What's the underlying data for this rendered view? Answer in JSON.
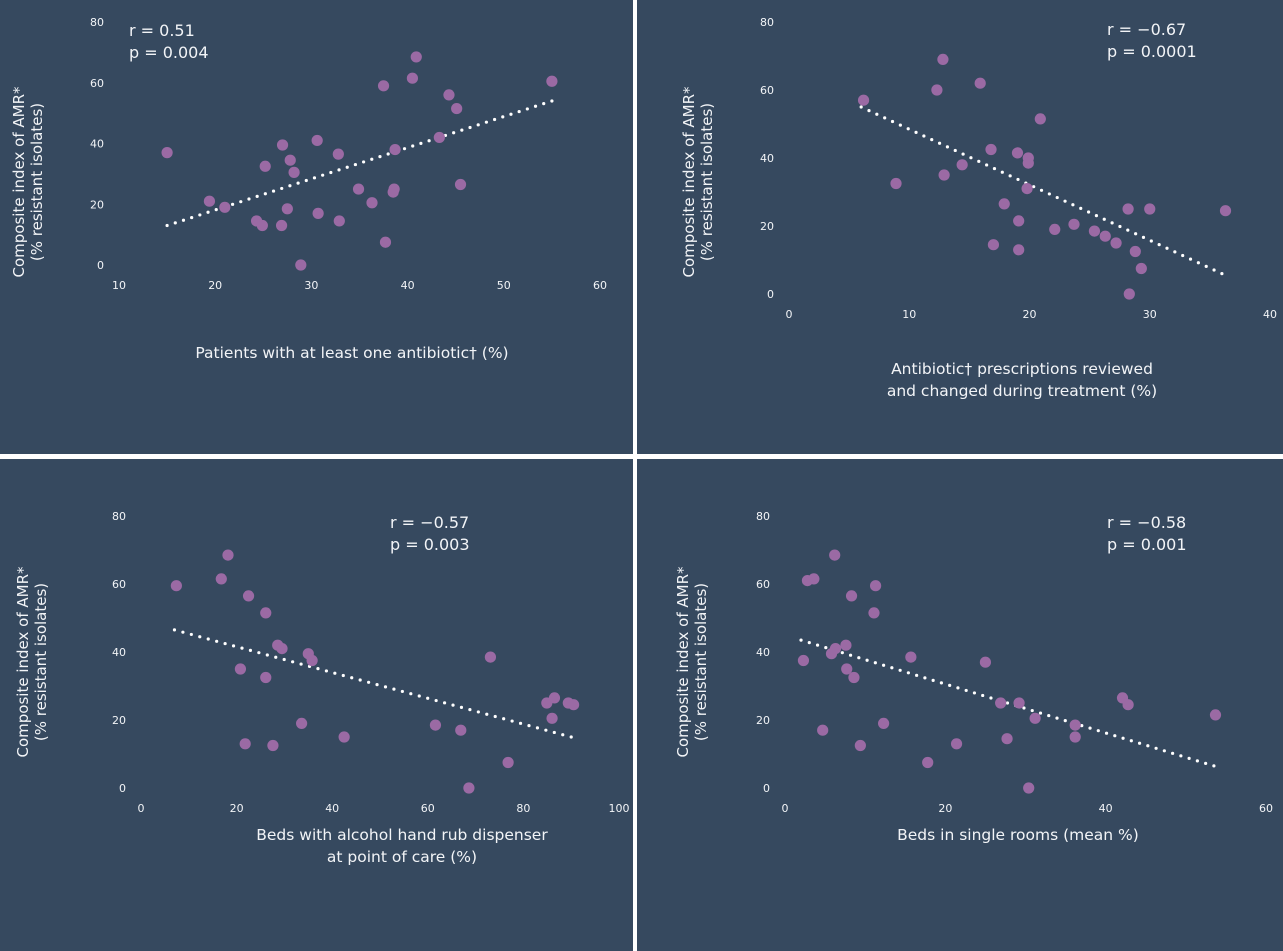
{
  "chart_data": [
    {
      "type": "scatter",
      "xlabel": [
        "Patients with at least one antibiotic† (%)"
      ],
      "ylabel": [
        "Composite index of AMR*",
        "(% resistant isolates)"
      ],
      "xticks": [
        10,
        20,
        30,
        40,
        50,
        60
      ],
      "yticks": [
        0,
        20,
        40,
        60,
        80
      ],
      "xlim": [
        10,
        60
      ],
      "ylim": [
        0,
        80
      ],
      "stats": [
        "r = 0.51",
        "p = 0.004"
      ],
      "trendline": {
        "x": [
          15,
          55
        ],
        "y": [
          13,
          54
        ]
      },
      "points": [
        {
          "x": 15,
          "y": 37
        },
        {
          "x": 19.4,
          "y": 21
        },
        {
          "x": 21,
          "y": 19
        },
        {
          "x": 24.3,
          "y": 14.5
        },
        {
          "x": 24.9,
          "y": 13
        },
        {
          "x": 25.2,
          "y": 32.5
        },
        {
          "x": 26.9,
          "y": 13
        },
        {
          "x": 27,
          "y": 39.5
        },
        {
          "x": 27.5,
          "y": 18.5
        },
        {
          "x": 27.8,
          "y": 34.5
        },
        {
          "x": 28.2,
          "y": 30.5
        },
        {
          "x": 28.9,
          "y": 0
        },
        {
          "x": 30.6,
          "y": 41
        },
        {
          "x": 30.7,
          "y": 17
        },
        {
          "x": 32.8,
          "y": 36.5
        },
        {
          "x": 32.9,
          "y": 14.5
        },
        {
          "x": 34.9,
          "y": 25
        },
        {
          "x": 36.3,
          "y": 20.5
        },
        {
          "x": 37.5,
          "y": 59
        },
        {
          "x": 37.7,
          "y": 7.5
        },
        {
          "x": 38.5,
          "y": 24
        },
        {
          "x": 38.6,
          "y": 25
        },
        {
          "x": 38.7,
          "y": 38
        },
        {
          "x": 40.5,
          "y": 61.5
        },
        {
          "x": 40.9,
          "y": 68.5
        },
        {
          "x": 43.3,
          "y": 42
        },
        {
          "x": 44.3,
          "y": 56
        },
        {
          "x": 45.1,
          "y": 51.5
        },
        {
          "x": 45.5,
          "y": 26.5
        },
        {
          "x": 55,
          "y": 60.5
        }
      ]
    },
    {
      "type": "scatter",
      "xlabel": [
        "Antibiotic† prescriptions reviewed",
        "and changed during treatment (%)"
      ],
      "ylabel": [
        "Composite index of AMR*",
        "(% resistant isolates)"
      ],
      "xticks": [
        0,
        10,
        20,
        30,
        40
      ],
      "yticks": [
        0,
        20,
        40,
        60,
        80
      ],
      "xlim": [
        0,
        40
      ],
      "ylim": [
        0,
        80
      ],
      "stats": [
        "r = −0.67",
        "p = 0.0001"
      ],
      "trendline": {
        "x": [
          6,
          36
        ],
        "y": [
          55,
          6
        ]
      },
      "points": [
        {
          "x": 6.2,
          "y": 57
        },
        {
          "x": 8.9,
          "y": 32.5
        },
        {
          "x": 12.3,
          "y": 60
        },
        {
          "x": 12.8,
          "y": 69
        },
        {
          "x": 12.9,
          "y": 35
        },
        {
          "x": 14.4,
          "y": 38
        },
        {
          "x": 15.9,
          "y": 62
        },
        {
          "x": 16.8,
          "y": 42.5
        },
        {
          "x": 17,
          "y": 14.5
        },
        {
          "x": 17.9,
          "y": 26.5
        },
        {
          "x": 19,
          "y": 41.5
        },
        {
          "x": 19.1,
          "y": 13
        },
        {
          "x": 19.1,
          "y": 21.5
        },
        {
          "x": 19.8,
          "y": 31
        },
        {
          "x": 19.9,
          "y": 40
        },
        {
          "x": 19.9,
          "y": 38.5
        },
        {
          "x": 20.9,
          "y": 51.5
        },
        {
          "x": 22.1,
          "y": 19
        },
        {
          "x": 23.7,
          "y": 20.5
        },
        {
          "x": 25.4,
          "y": 18.5
        },
        {
          "x": 26.3,
          "y": 17
        },
        {
          "x": 27.2,
          "y": 15
        },
        {
          "x": 28.2,
          "y": 25
        },
        {
          "x": 28.3,
          "y": 0
        },
        {
          "x": 28.8,
          "y": 12.5
        },
        {
          "x": 29.3,
          "y": 7.5
        },
        {
          "x": 30,
          "y": 25
        },
        {
          "x": 36.3,
          "y": 24.5
        }
      ]
    },
    {
      "type": "scatter",
      "xlabel": [
        "Beds with alcohol hand rub dispenser",
        "at point of care (%)"
      ],
      "ylabel": [
        "Composite index of AMR*",
        "(% resistant isolates)"
      ],
      "xticks": [
        0,
        20,
        40,
        60,
        80,
        100
      ],
      "yticks": [
        0,
        20,
        40,
        60,
        80
      ],
      "xlim": [
        0,
        100
      ],
      "ylim": [
        0,
        80
      ],
      "stats": [
        "r = −0.57",
        "p = 0.003"
      ],
      "trendline": {
        "x": [
          7,
          90
        ],
        "y": [
          46.5,
          15
        ]
      },
      "points": [
        {
          "x": 7.4,
          "y": 59.5
        },
        {
          "x": 16.8,
          "y": 61.5
        },
        {
          "x": 18.2,
          "y": 68.5
        },
        {
          "x": 20.8,
          "y": 35
        },
        {
          "x": 21.8,
          "y": 13
        },
        {
          "x": 22.5,
          "y": 56.5
        },
        {
          "x": 26.1,
          "y": 51.5
        },
        {
          "x": 26.1,
          "y": 32.5
        },
        {
          "x": 27.6,
          "y": 12.5
        },
        {
          "x": 28.6,
          "y": 42
        },
        {
          "x": 29.5,
          "y": 41
        },
        {
          "x": 33.6,
          "y": 19
        },
        {
          "x": 35,
          "y": 39.5
        },
        {
          "x": 35.8,
          "y": 37.5
        },
        {
          "x": 42.5,
          "y": 15
        },
        {
          "x": 61.6,
          "y": 18.5
        },
        {
          "x": 66.9,
          "y": 17
        },
        {
          "x": 68.6,
          "y": 0
        },
        {
          "x": 73.1,
          "y": 38.5
        },
        {
          "x": 76.8,
          "y": 7.5
        },
        {
          "x": 84.9,
          "y": 25
        },
        {
          "x": 86,
          "y": 20.5
        },
        {
          "x": 86.5,
          "y": 26.5
        },
        {
          "x": 89.4,
          "y": 25
        },
        {
          "x": 90.5,
          "y": 24.5
        }
      ]
    },
    {
      "type": "scatter",
      "xlabel": [
        "Beds in single rooms (mean %)"
      ],
      "ylabel": [
        "Composite index of AMR*",
        "(% resistant isolates)"
      ],
      "xticks": [
        0,
        20,
        40,
        60
      ],
      "yticks": [
        0,
        20,
        40,
        60,
        80
      ],
      "xlim": [
        0,
        60
      ],
      "ylim": [
        0,
        80
      ],
      "stats": [
        "r = −0.58",
        "p = 0.001"
      ],
      "trendline": {
        "x": [
          2,
          53.5
        ],
        "y": [
          43.5,
          6.5
        ]
      },
      "points": [
        {
          "x": 2.3,
          "y": 37.5
        },
        {
          "x": 2.8,
          "y": 61
        },
        {
          "x": 3.6,
          "y": 61.5
        },
        {
          "x": 4.7,
          "y": 17
        },
        {
          "x": 5.8,
          "y": 39.5
        },
        {
          "x": 6.2,
          "y": 68.5
        },
        {
          "x": 6.3,
          "y": 41
        },
        {
          "x": 7.6,
          "y": 42
        },
        {
          "x": 7.7,
          "y": 35
        },
        {
          "x": 8.3,
          "y": 56.5
        },
        {
          "x": 8.6,
          "y": 32.5
        },
        {
          "x": 9.4,
          "y": 12.5
        },
        {
          "x": 11.1,
          "y": 51.5
        },
        {
          "x": 11.3,
          "y": 59.5
        },
        {
          "x": 12.3,
          "y": 19
        },
        {
          "x": 15.7,
          "y": 38.5
        },
        {
          "x": 17.8,
          "y": 7.5
        },
        {
          "x": 21.4,
          "y": 13
        },
        {
          "x": 25,
          "y": 37
        },
        {
          "x": 26.9,
          "y": 25
        },
        {
          "x": 27.7,
          "y": 14.5
        },
        {
          "x": 29.2,
          "y": 25
        },
        {
          "x": 30.4,
          "y": 0
        },
        {
          "x": 31.2,
          "y": 20.5
        },
        {
          "x": 36.2,
          "y": 18.5
        },
        {
          "x": 36.2,
          "y": 15
        },
        {
          "x": 42.1,
          "y": 26.5
        },
        {
          "x": 42.8,
          "y": 24.5
        },
        {
          "x": 53.7,
          "y": 21.5
        }
      ]
    }
  ],
  "colors": {
    "background": "#36495f",
    "divider": "#ffffff",
    "point": "#9b6aa4",
    "trendline": "#ffffff",
    "text": "#f2f4f7"
  }
}
